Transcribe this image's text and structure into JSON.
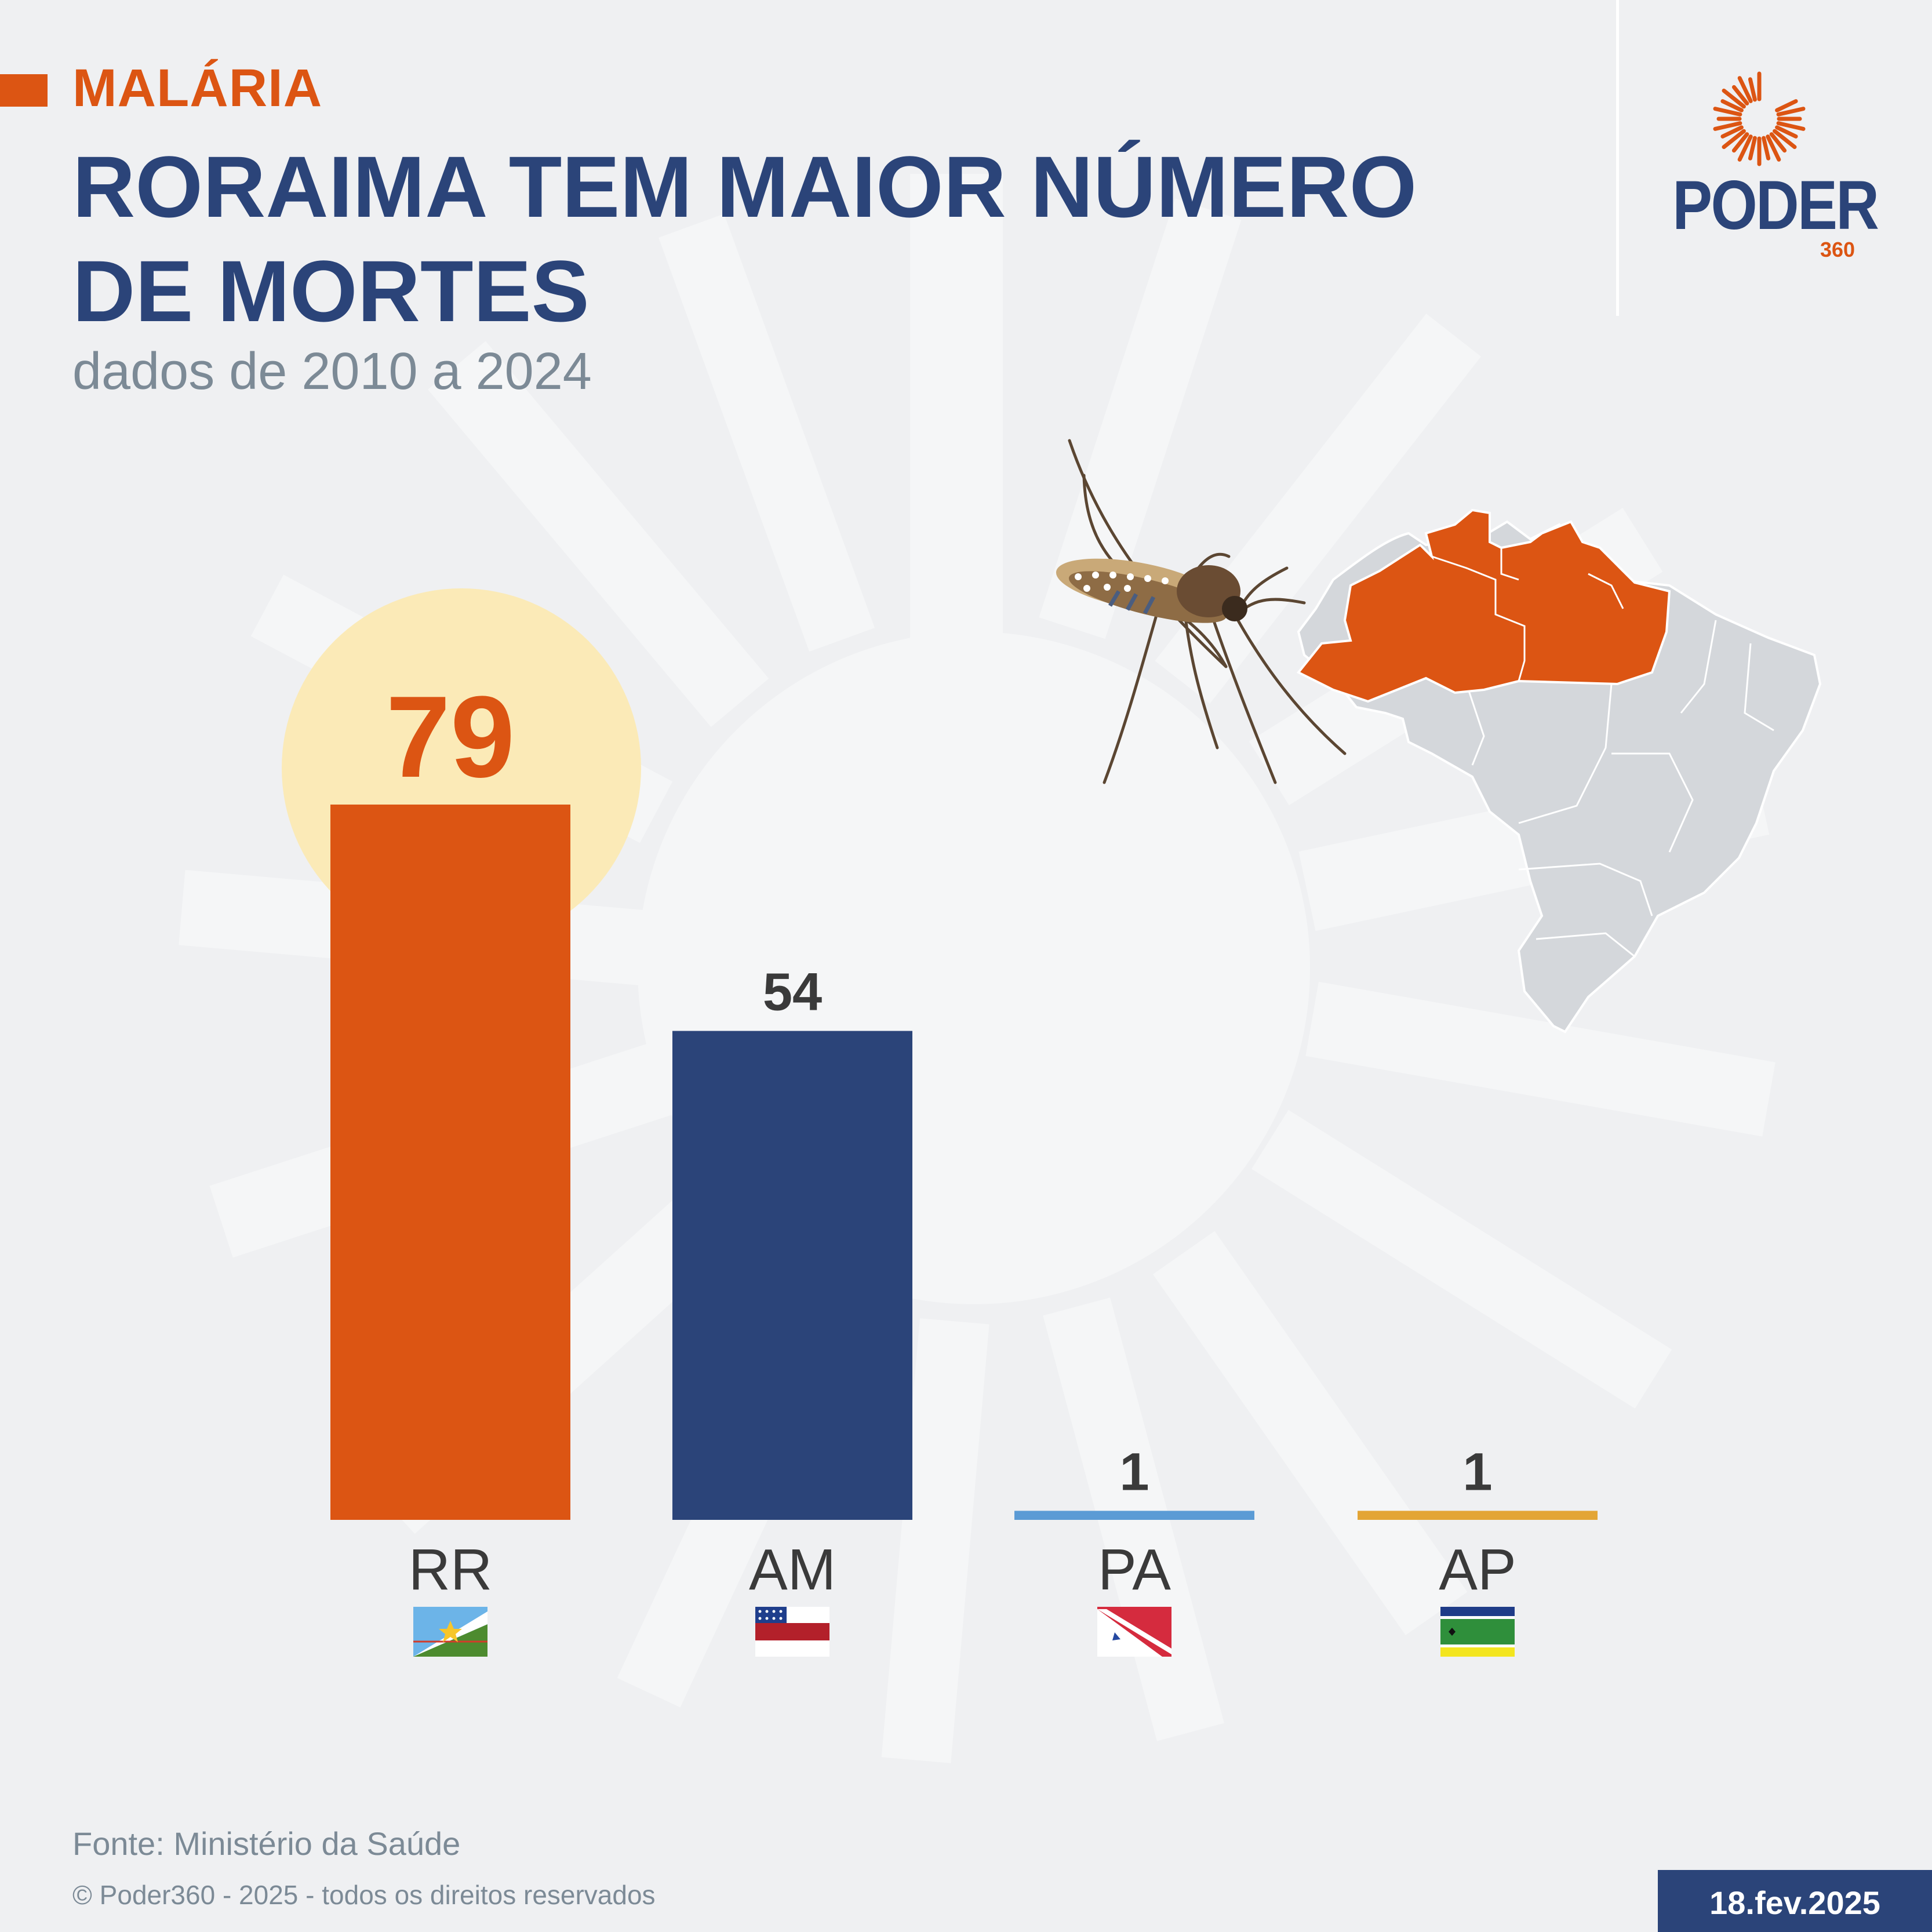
{
  "header": {
    "kicker": "MALÁRIA",
    "title_line1": "RORAIMA TEM MAIOR NÚMERO",
    "title_line2": "DE MORTES",
    "subtitle": "dados de 2010 a 2024"
  },
  "logo": {
    "name": "PODER",
    "suffix": "360"
  },
  "colors": {
    "orange": "#dc5513",
    "navy": "#2b4479",
    "light_blue": "#5b9bd5",
    "gold": "#e3a535",
    "highlight": "#fbeab7",
    "map_gray": "#d4d7db"
  },
  "chart_data": {
    "type": "bar",
    "categories": [
      "RR",
      "AM",
      "PA",
      "AP"
    ],
    "values": [
      79,
      54,
      1,
      1
    ],
    "value_labels": [
      "79",
      "54",
      "1",
      "1"
    ],
    "bar_colors": [
      "#dc5513",
      "#2b4479",
      "#5b9bd5",
      "#e3a535"
    ],
    "highlighted_category": "RR",
    "flags": [
      "flag-roraima-icon",
      "flag-amazonas-icon",
      "flag-para-icon",
      "flag-amapa-icon"
    ],
    "title": "",
    "xlabel": "",
    "ylabel": "",
    "ylim": [
      0,
      80
    ],
    "grid": false,
    "legend": "none"
  },
  "icons": {
    "mosquito": "mosquito-icon",
    "map": "brazil-map-icon",
    "logo": "sun-burst-logo-icon"
  },
  "footer": {
    "source": "Fonte: Ministério da Saúde",
    "copyright": "© Poder360 - 2025 - todos os direitos reservados",
    "date": "18.fev.2025"
  }
}
